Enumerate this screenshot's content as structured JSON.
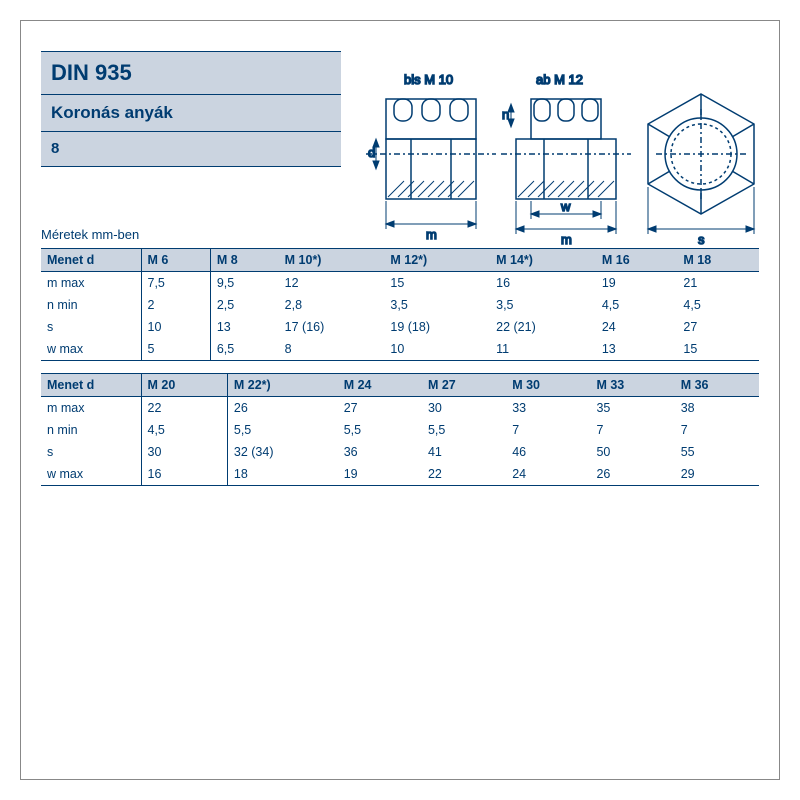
{
  "header": {
    "standard": "DIN 935",
    "name": "Koronás anyák",
    "grade": "8"
  },
  "diagram_labels": {
    "left": "bis M 10",
    "right": "ab M 12",
    "m": "m",
    "w": "w",
    "s": "s",
    "d": "d",
    "n": "n"
  },
  "table": {
    "caption": "Méretek mm-ben",
    "row_header": "Menet d",
    "param_labels": [
      "m max",
      "n min",
      "s",
      "w max"
    ],
    "blocks": [
      {
        "sizes": [
          "M 6",
          "M 8",
          "M 10*)",
          "M 12*)",
          "M 14*)",
          "M 16",
          "M 18"
        ],
        "rows": [
          [
            "7,5",
            "9,5",
            "12",
            "15",
            "16",
            "19",
            "21"
          ],
          [
            "2",
            "2,5",
            "2,8",
            "3,5",
            "3,5",
            "4,5",
            "4,5"
          ],
          [
            "10",
            "13",
            "17 (16)",
            "19 (18)",
            "22 (21)",
            "24",
            "27"
          ],
          [
            "5",
            "6,5",
            "8",
            "10",
            "11",
            "13",
            "15"
          ]
        ]
      },
      {
        "sizes": [
          "M 20",
          "M 22*)",
          "M 24",
          "M 27",
          "M 30",
          "M 33",
          "M 36"
        ],
        "rows": [
          [
            "22",
            "26",
            "27",
            "30",
            "33",
            "35",
            "38"
          ],
          [
            "4,5",
            "5,5",
            "5,5",
            "5,5",
            "7",
            "7",
            "7"
          ],
          [
            "30",
            "32 (34)",
            "36",
            "41",
            "46",
            "50",
            "55"
          ],
          [
            "16",
            "18",
            "19",
            "22",
            "24",
            "26",
            "29"
          ]
        ]
      }
    ]
  },
  "style": {
    "header_bg": "#cbd4e0",
    "text_color": "#003c71",
    "border_color": "#003c71",
    "page_bg": "#ffffff",
    "diagram_stroke": "#003c71",
    "diagram_fill_hatch": "#003c71"
  }
}
